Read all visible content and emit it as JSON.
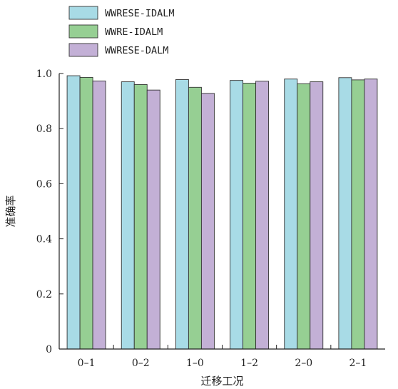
{
  "chart_data": {
    "type": "bar",
    "xlabel": "迁移工况",
    "ylabel": "准确率",
    "categories": [
      "0-1",
      "0-2",
      "1-0",
      "1-2",
      "2-0",
      "2-1"
    ],
    "ylim": [
      0,
      1.0
    ],
    "yticks": [
      "0",
      "0.2",
      "0.4",
      "0.6",
      "0.8",
      "1.0"
    ],
    "ytick_values": [
      0,
      0.2,
      0.4,
      0.6,
      0.8,
      1.0
    ],
    "grid": false,
    "legend_position": "top-left",
    "series": [
      {
        "name": "WWRESE-IDALM",
        "color": "#a8dbe6",
        "values": [
          0.992,
          0.97,
          0.978,
          0.975,
          0.98,
          0.985
        ]
      },
      {
        "name": "WWRE-IDALM",
        "color": "#96cf93",
        "values": [
          0.986,
          0.96,
          0.95,
          0.965,
          0.963,
          0.977
        ]
      },
      {
        "name": "WWRESE-DALM",
        "color": "#c3b0d6",
        "values": [
          0.973,
          0.94,
          0.928,
          0.972,
          0.97,
          0.98
        ]
      }
    ]
  }
}
